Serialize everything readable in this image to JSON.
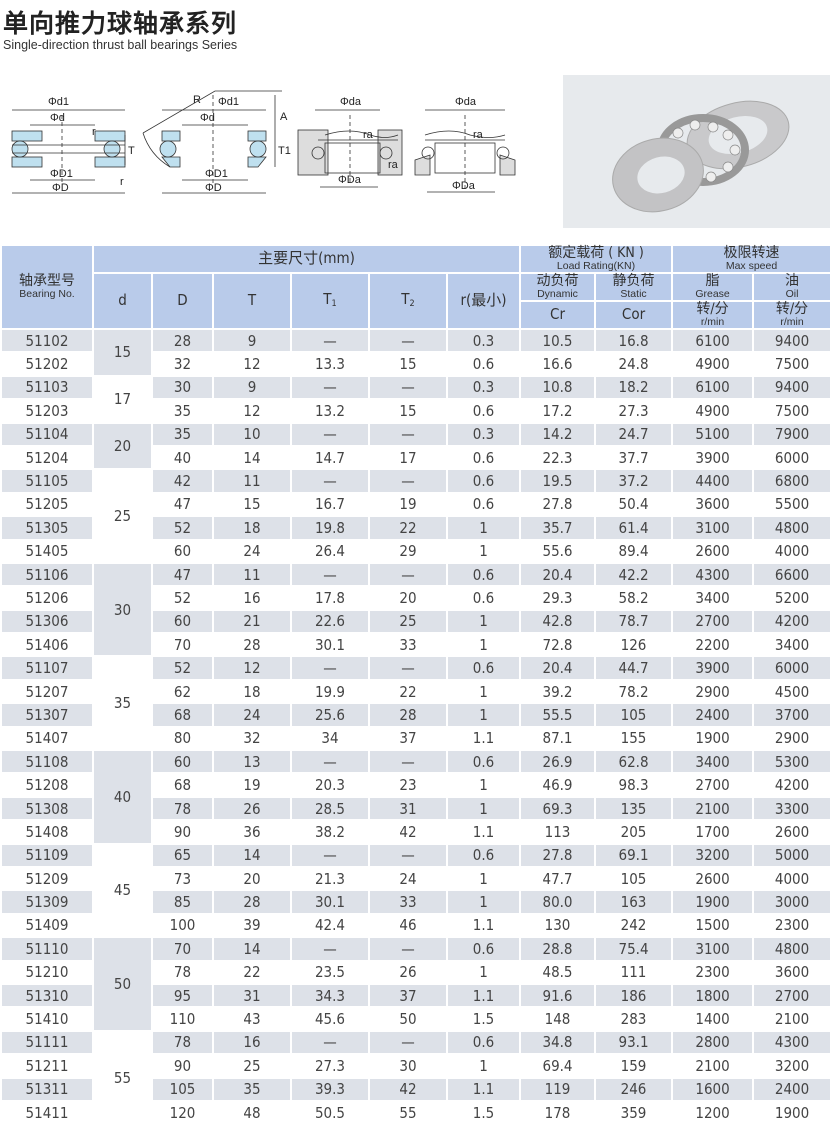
{
  "title": "单向推力球轴承系列",
  "subtitle": "Single-direction thrust ball bearings Series",
  "diagram_labels": {
    "d1": "Φd1",
    "d": "Φd",
    "r": "r",
    "T": "T",
    "D1": "ΦD1",
    "D": "ΦD",
    "R": "R",
    "A": "A",
    "T1": "T1",
    "da": "Φda",
    "ra": "ra",
    "Da": "ΦDa"
  },
  "header": {
    "bearing_cn": "轴承型号",
    "bearing_en": "Bearing No.",
    "dims": "主要尺寸(mm)",
    "d": "d",
    "D": "D",
    "T": "T",
    "T1": "T",
    "T1_sub": "1",
    "T2": "T",
    "T2_sub": "2",
    "r": "r(最小)",
    "load_cn": "额定载荷 ( KN )",
    "load_en": "Load Rating(KN)",
    "dyn_cn": "动负荷",
    "dyn_en": "Dynamic",
    "stat_cn": "静负荷",
    "stat_en": "Static",
    "cr": "Cr",
    "cor": "Cor",
    "speed_cn": "极限转速",
    "speed_en": "Max speed",
    "grease_cn": "脂",
    "grease_en": "Grease",
    "oil_cn": "油",
    "oil_en": "Oil",
    "unit_cn": "转/分",
    "unit_en": "r/min"
  },
  "groups": [
    {
      "d": "15",
      "rows": [
        [
          "51102",
          "28",
          "9",
          "—",
          "—",
          "0.3",
          "10.5",
          "16.8",
          "6100",
          "9400"
        ],
        [
          "51202",
          "32",
          "12",
          "13.3",
          "15",
          "0.6",
          "16.6",
          "24.8",
          "4900",
          "7500"
        ]
      ]
    },
    {
      "d": "17",
      "rows": [
        [
          "51103",
          "30",
          "9",
          "—",
          "—",
          "0.3",
          "10.8",
          "18.2",
          "6100",
          "9400"
        ],
        [
          "51203",
          "35",
          "12",
          "13.2",
          "15",
          "0.6",
          "17.2",
          "27.3",
          "4900",
          "7500"
        ]
      ]
    },
    {
      "d": "20",
      "rows": [
        [
          "51104",
          "35",
          "10",
          "—",
          "—",
          "0.3",
          "14.2",
          "24.7",
          "5100",
          "7900"
        ],
        [
          "51204",
          "40",
          "14",
          "14.7",
          "17",
          "0.6",
          "22.3",
          "37.7",
          "3900",
          "6000"
        ]
      ]
    },
    {
      "d": "25",
      "rows": [
        [
          "51105",
          "42",
          "11",
          "—",
          "—",
          "0.6",
          "19.5",
          "37.2",
          "4400",
          "6800"
        ],
        [
          "51205",
          "47",
          "15",
          "16.7",
          "19",
          "0.6",
          "27.8",
          "50.4",
          "3600",
          "5500"
        ],
        [
          "51305",
          "52",
          "18",
          "19.8",
          "22",
          "1",
          "35.7",
          "61.4",
          "3100",
          "4800"
        ],
        [
          "51405",
          "60",
          "24",
          "26.4",
          "29",
          "1",
          "55.6",
          "89.4",
          "2600",
          "4000"
        ]
      ]
    },
    {
      "d": "30",
      "rows": [
        [
          "51106",
          "47",
          "11",
          "—",
          "—",
          "0.6",
          "20.4",
          "42.2",
          "4300",
          "6600"
        ],
        [
          "51206",
          "52",
          "16",
          "17.8",
          "20",
          "0.6",
          "29.3",
          "58.2",
          "3400",
          "5200"
        ],
        [
          "51306",
          "60",
          "21",
          "22.6",
          "25",
          "1",
          "42.8",
          "78.7",
          "2700",
          "4200"
        ],
        [
          "51406",
          "70",
          "28",
          "30.1",
          "33",
          "1",
          "72.8",
          "126",
          "2200",
          "3400"
        ]
      ]
    },
    {
      "d": "35",
      "rows": [
        [
          "51107",
          "52",
          "12",
          "—",
          "—",
          "0.6",
          "20.4",
          "44.7",
          "3900",
          "6000"
        ],
        [
          "51207",
          "62",
          "18",
          "19.9",
          "22",
          "1",
          "39.2",
          "78.2",
          "2900",
          "4500"
        ],
        [
          "51307",
          "68",
          "24",
          "25.6",
          "28",
          "1",
          "55.5",
          "105",
          "2400",
          "3700"
        ],
        [
          "51407",
          "80",
          "32",
          "34",
          "37",
          "1.1",
          "87.1",
          "155",
          "1900",
          "2900"
        ]
      ]
    },
    {
      "d": "40",
      "rows": [
        [
          "51108",
          "60",
          "13",
          "—",
          "—",
          "0.6",
          "26.9",
          "62.8",
          "3400",
          "5300"
        ],
        [
          "51208",
          "68",
          "19",
          "20.3",
          "23",
          "1",
          "46.9",
          "98.3",
          "2700",
          "4200"
        ],
        [
          "51308",
          "78",
          "26",
          "28.5",
          "31",
          "1",
          "69.3",
          "135",
          "2100",
          "3300"
        ],
        [
          "51408",
          "90",
          "36",
          "38.2",
          "42",
          "1.1",
          "113",
          "205",
          "1700",
          "2600"
        ]
      ]
    },
    {
      "d": "45",
      "rows": [
        [
          "51109",
          "65",
          "14",
          "—",
          "—",
          "0.6",
          "27.8",
          "69.1",
          "3200",
          "5000"
        ],
        [
          "51209",
          "73",
          "20",
          "21.3",
          "24",
          "1",
          "47.7",
          "105",
          "2600",
          "4000"
        ],
        [
          "51309",
          "85",
          "28",
          "30.1",
          "33",
          "1",
          "80.0",
          "163",
          "1900",
          "3000"
        ],
        [
          "51409",
          "100",
          "39",
          "42.4",
          "46",
          "1.1",
          "130",
          "242",
          "1500",
          "2300"
        ]
      ]
    },
    {
      "d": "50",
      "rows": [
        [
          "51110",
          "70",
          "14",
          "—",
          "—",
          "0.6",
          "28.8",
          "75.4",
          "3100",
          "4800"
        ],
        [
          "51210",
          "78",
          "22",
          "23.5",
          "26",
          "1",
          "48.5",
          "111",
          "2300",
          "3600"
        ],
        [
          "51310",
          "95",
          "31",
          "34.3",
          "37",
          "1.1",
          "91.6",
          "186",
          "1800",
          "2700"
        ],
        [
          "51410",
          "110",
          "43",
          "45.6",
          "50",
          "1.5",
          "148",
          "283",
          "1400",
          "2100"
        ]
      ]
    },
    {
      "d": "55",
      "rows": [
        [
          "51111",
          "78",
          "16",
          "—",
          "—",
          "0.6",
          "34.8",
          "93.1",
          "2800",
          "4300"
        ],
        [
          "51211",
          "90",
          "25",
          "27.3",
          "30",
          "1",
          "69.4",
          "159",
          "2100",
          "3200"
        ],
        [
          "51311",
          "105",
          "35",
          "39.3",
          "42",
          "1.1",
          "119",
          "246",
          "1600",
          "2400"
        ],
        [
          "51411",
          "120",
          "48",
          "50.5",
          "55",
          "1.5",
          "178",
          "359",
          "1200",
          "1900"
        ]
      ]
    }
  ]
}
